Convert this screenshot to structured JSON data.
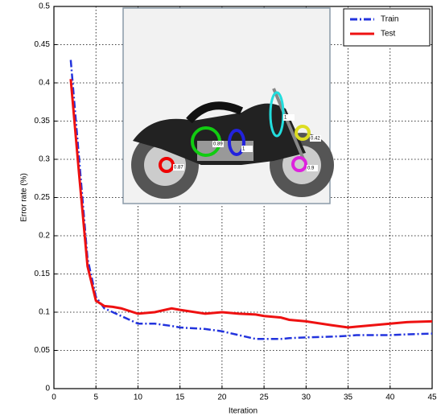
{
  "chart_data": {
    "type": "line",
    "xlabel": "Iteration",
    "ylabel": "Error rate (%)",
    "x": [
      2,
      3,
      4,
      5,
      6,
      7,
      8,
      10,
      12,
      14,
      15,
      18,
      20,
      22,
      24,
      25,
      27,
      28,
      30,
      33,
      35,
      36,
      38,
      40,
      42,
      45
    ],
    "series": [
      {
        "name": "Train",
        "color": "#2233dd",
        "line_style": "dash-dot",
        "values": [
          0.43,
          0.3,
          0.17,
          0.12,
          0.105,
          0.1,
          0.095,
          0.085,
          0.085,
          0.082,
          0.08,
          0.078,
          0.075,
          0.07,
          0.065,
          0.065,
          0.065,
          0.066,
          0.067,
          0.068,
          0.069,
          0.07,
          0.07,
          0.07,
          0.071,
          0.072
        ]
      },
      {
        "name": "Test",
        "color": "#ee1111",
        "line_style": "solid",
        "values": [
          0.405,
          0.28,
          0.16,
          0.115,
          0.108,
          0.107,
          0.105,
          0.098,
          0.1,
          0.105,
          0.103,
          0.098,
          0.1,
          0.098,
          0.097,
          0.095,
          0.093,
          0.09,
          0.088,
          0.083,
          0.08,
          0.081,
          0.083,
          0.085,
          0.087,
          0.088
        ]
      }
    ],
    "xlim": [
      0,
      45
    ],
    "xticks": [
      0,
      5,
      10,
      15,
      20,
      25,
      30,
      35,
      40,
      45
    ],
    "ylim": [
      0,
      0.5
    ],
    "yticks": [
      0,
      0.05,
      0.1,
      0.15,
      0.2,
      0.25,
      0.3,
      0.35,
      0.4,
      0.45,
      0.5
    ],
    "grid": true,
    "legend": "upper-right",
    "inset_labels": [
      "0.87",
      "0.89",
      "1",
      "1",
      "0.42",
      "0.9"
    ]
  }
}
